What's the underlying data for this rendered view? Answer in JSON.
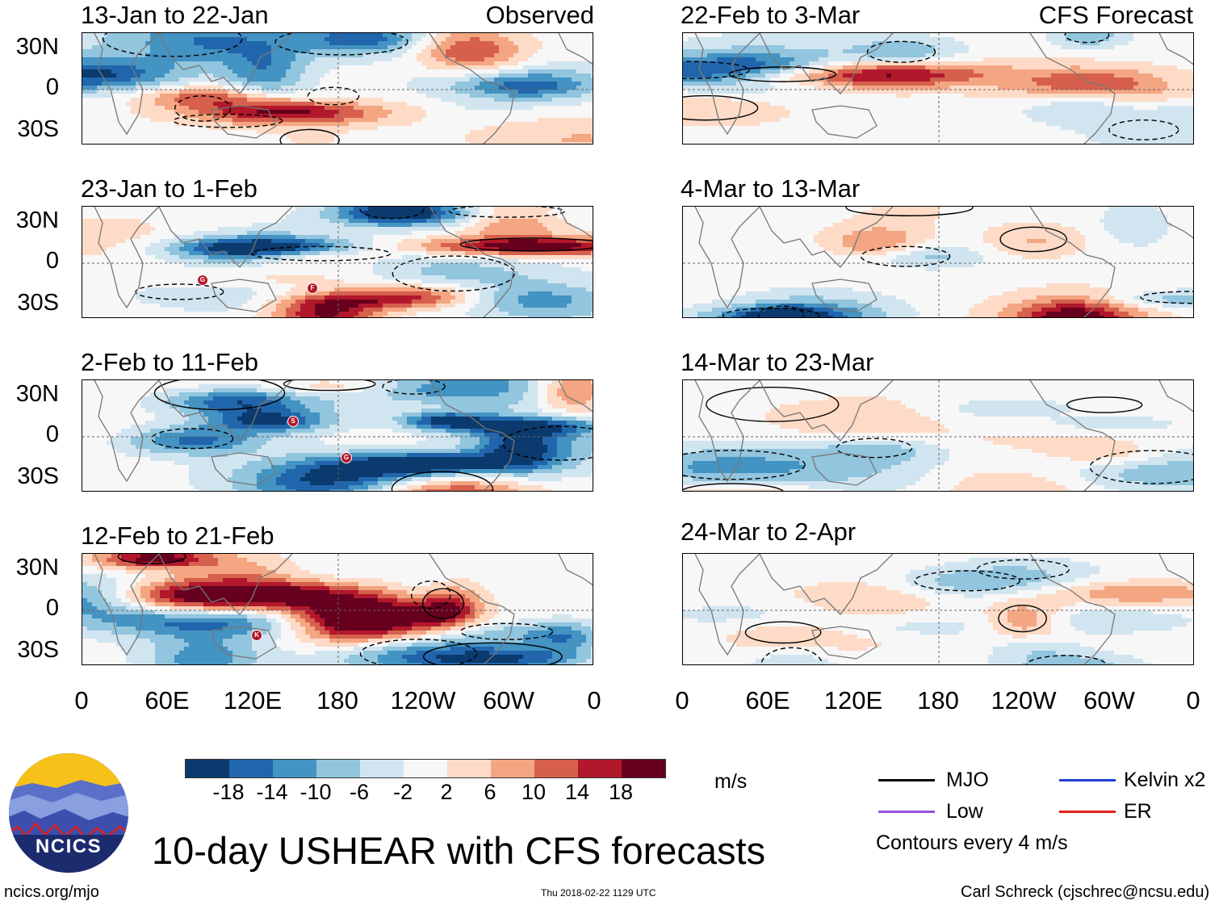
{
  "title": "10-day USHEAR with CFS forecasts",
  "units": "m/s",
  "left_column_label": "Observed",
  "right_column_label": "CFS Forecast",
  "panels_left": [
    {
      "title": "13-Jan to 22-Jan"
    },
    {
      "title": "23-Jan to 1-Feb"
    },
    {
      "title": "2-Feb to 11-Feb"
    },
    {
      "title": "12-Feb to 21-Feb"
    }
  ],
  "panels_right": [
    {
      "title": "22-Feb to 3-Mar"
    },
    {
      "title": "4-Mar to 13-Mar"
    },
    {
      "title": "14-Mar to 23-Mar"
    },
    {
      "title": "24-Mar to 2-Apr"
    }
  ],
  "y_ticks": [
    "30N",
    "0",
    "30S"
  ],
  "x_ticks": [
    "0",
    "60E",
    "120E",
    "180",
    "120W",
    "60W",
    "0"
  ],
  "colorbar": {
    "labels": [
      "-18",
      "-14",
      "-10",
      "-6",
      "-2",
      "2",
      "6",
      "10",
      "14",
      "18"
    ],
    "colors": [
      "#0b3a6e",
      "#2166ac",
      "#4393c3",
      "#92c5de",
      "#d1e5f0",
      "#f7f7f7",
      "#fddbc7",
      "#f4a582",
      "#d6604d",
      "#b2182b",
      "#67001f"
    ]
  },
  "legend": {
    "mjo": "MJO",
    "kelvin": "Kelvin x2",
    "low": "Low",
    "er": "ER",
    "contours": "Contours every 4 m/s",
    "colors": {
      "mjo": "#000000",
      "kelvin": "#1f3fd6",
      "low": "#9b4fe0",
      "er": "#e0201a"
    }
  },
  "logo_text": "NCICS",
  "footer": {
    "url": "ncics.org/mjo",
    "timestamp": "Thu 2018-02-22 1129 UTC",
    "credit": "Carl Schreck (cjschrec@ncsu.edu)"
  },
  "storm_markers": [
    "G",
    "F",
    "S",
    "G",
    "K"
  ]
}
